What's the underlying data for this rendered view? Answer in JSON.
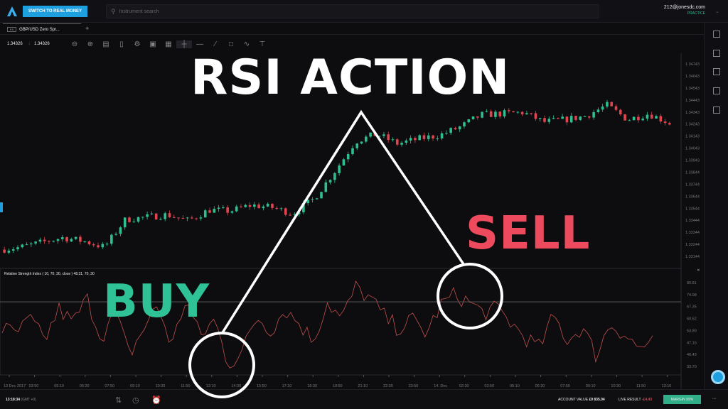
{
  "topbar": {
    "switch_label": "SWITCH TO REAL MONEY",
    "search_placeholder": "Instrument search",
    "user_email": "212@jonesdc.com",
    "account_mode": "PRACTICE"
  },
  "tab": {
    "badge": "FX",
    "label": "GBP/USD Zero Spr..."
  },
  "toolbar": {
    "bid": "1.34326",
    "ask": "1.34326"
  },
  "rsi": {
    "title": "Relative Strength Index ( 10, 70, 30, close ) 48.31, 70, 30"
  },
  "overlay": {
    "title": "RSI ACTION",
    "buy": "BUY",
    "sell": "SELL",
    "buy_color": "#2fc296",
    "sell_color": "#ee4a5e"
  },
  "bottom": {
    "time": "13:18:34",
    "tz": "(GMT +0)",
    "account_label": "ACCOUNT VALUE",
    "account_value": "£9 835.04",
    "live_label": "LIVE RESULT",
    "live_value": "-£4.43",
    "margin": "MARGIN 99%"
  },
  "chart_data": {
    "type": "candlestick",
    "price_ticks": [
      "1.34743",
      "1.34643",
      "1.34543",
      "1.34443",
      "1.34343",
      "1.34243",
      "1.34143",
      "1.34043",
      "1.33943",
      "1.33844",
      "1.33744",
      "1.33644",
      "1.33544",
      "1.33444",
      "1.33344",
      "1.33244",
      "1.33144"
    ],
    "rsi_ticks": [
      "80.81",
      "74.08",
      "67.35",
      "60.62",
      "53.89",
      "47.16",
      "40.43",
      "33.70"
    ],
    "time_ticks": [
      "13 Dec 2017",
      "03:50",
      "05:10",
      "06:30",
      "07:50",
      "09:10",
      "10:30",
      "11:50",
      "13:10",
      "14:30",
      "15:50",
      "17:10",
      "18:30",
      "19:50",
      "21:10",
      "22:30",
      "23:50",
      "14. Dec",
      "02:30",
      "03:50",
      "05:10",
      "06:30",
      "07:50",
      "09:10",
      "10:30",
      "11:50",
      "13:10"
    ],
    "price_path": [
      1.332,
      1.3322,
      1.3326,
      1.333,
      1.3327,
      1.3322,
      1.3345,
      1.3347,
      1.3349,
      1.3344,
      1.3353,
      1.3352,
      1.3357,
      1.3355,
      1.335,
      1.3362,
      1.3385,
      1.341,
      1.3416,
      1.3408,
      1.3412,
      1.3415,
      1.3422,
      1.3432,
      1.3433,
      1.3434,
      1.3426,
      1.3428,
      1.3431,
      1.344,
      1.3428,
      1.3433,
      1.3425
    ],
    "rsi_path": [
      55,
      52,
      60,
      48,
      66,
      58,
      72,
      50,
      64,
      40,
      55,
      68,
      45,
      72,
      50,
      60,
      35,
      42,
      62,
      54,
      66,
      58,
      48,
      70,
      60,
      78,
      72,
      62,
      55,
      60,
      52,
      68,
      74,
      70,
      64,
      66,
      58,
      50,
      44,
      62,
      48,
      56,
      40,
      58,
      52,
      44,
      47
    ],
    "rsi_levels": [
      70,
      30
    ],
    "up_color": "#2fbf8f",
    "down_color": "#e0444f"
  }
}
